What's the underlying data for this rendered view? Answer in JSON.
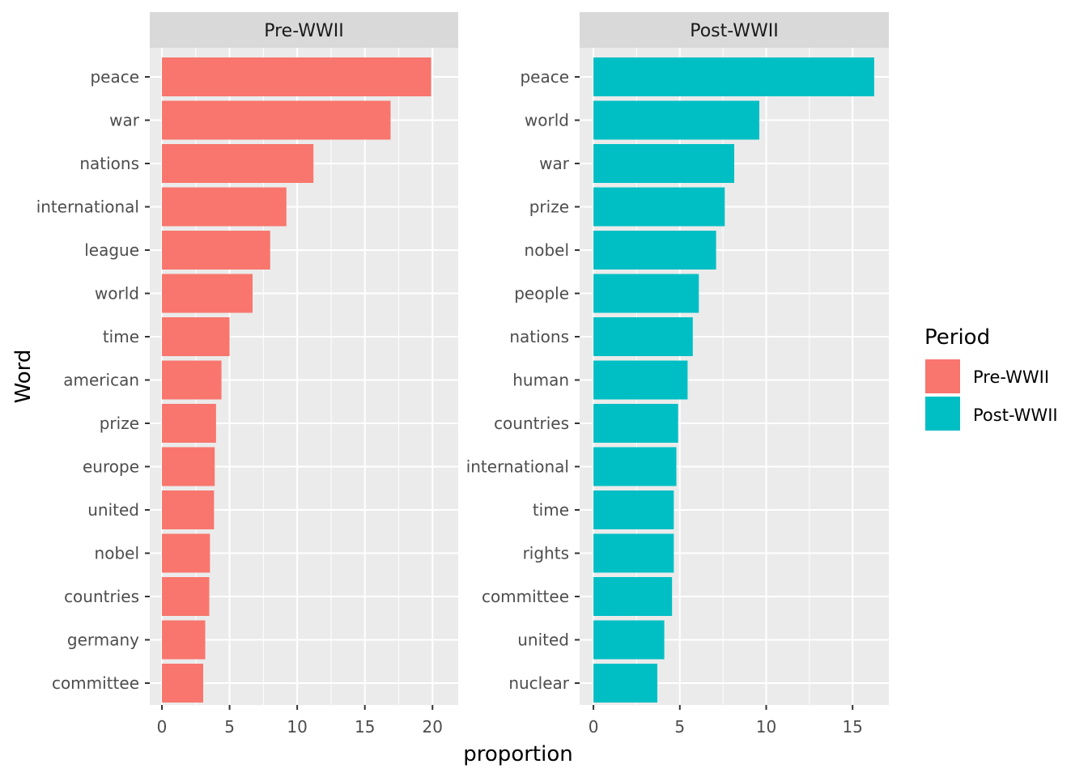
{
  "chart_data": {
    "type": "bar",
    "orientation": "horizontal",
    "xlabel": "proportion",
    "ylabel": "Word",
    "legend": {
      "title": "Period",
      "position": "right",
      "entries": [
        {
          "label": "Pre-WWII",
          "color": "#F8766D"
        },
        {
          "label": "Post-WWII",
          "color": "#00BFC4"
        }
      ]
    },
    "grid": true,
    "panels": [
      {
        "title": "Pre-WWII",
        "color": "#F8766D",
        "xlim": [
          -0.9,
          21.9
        ],
        "xticks": [
          0,
          5,
          10,
          15,
          20
        ],
        "categories": [
          "peace",
          "war",
          "nations",
          "international",
          "league",
          "world",
          "time",
          "american",
          "prize",
          "europe",
          "united",
          "nobel",
          "countries",
          "germany",
          "committee"
        ],
        "values": [
          19.9,
          16.9,
          11.2,
          9.2,
          8.0,
          6.7,
          5.0,
          4.4,
          4.0,
          3.9,
          3.85,
          3.55,
          3.5,
          3.2,
          3.05
        ]
      },
      {
        "title": "Post-WWII",
        "color": "#00BFC4",
        "xlim": [
          -0.8,
          17.1
        ],
        "xticks": [
          0,
          5,
          10,
          15
        ],
        "categories": [
          "peace",
          "world",
          "war",
          "prize",
          "nobel",
          "people",
          "nations",
          "human",
          "countries",
          "international",
          "time",
          "rights",
          "committee",
          "united",
          "nuclear"
        ],
        "values": [
          16.25,
          9.6,
          8.15,
          7.6,
          7.1,
          6.1,
          5.75,
          5.45,
          4.9,
          4.8,
          4.65,
          4.65,
          4.55,
          4.1,
          3.7
        ]
      }
    ]
  }
}
